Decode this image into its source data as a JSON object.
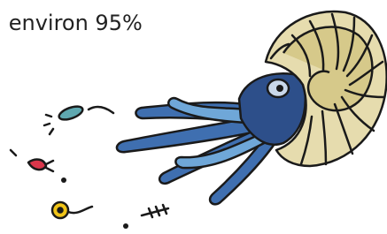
{
  "caption": ": environ 95%"
}
